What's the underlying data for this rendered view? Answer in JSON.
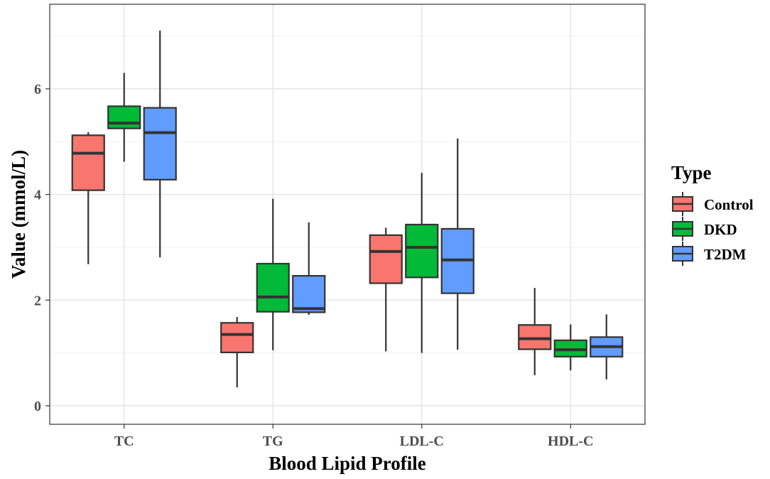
{
  "chart_data": {
    "type": "boxplot",
    "xlabel": "Blood Lipid Profile",
    "ylabel": "Value (mmol/L)",
    "categories": [
      "TC",
      "TG",
      "LDL-C",
      "HDL-C"
    ],
    "ylim": [
      -0.35,
      7.6
    ],
    "yticks": [
      0,
      2,
      4,
      6
    ],
    "grid": true,
    "legend": {
      "title": "Type",
      "position": "right"
    },
    "series": [
      {
        "name": "Control",
        "color": "#F8766D",
        "boxes": [
          {
            "min": 2.68,
            "q1": 4.08,
            "median": 4.78,
            "q3": 5.12,
            "max": 5.18
          },
          {
            "min": 0.35,
            "q1": 1.01,
            "median": 1.35,
            "q3": 1.57,
            "max": 1.68
          },
          {
            "min": 1.03,
            "q1": 2.32,
            "median": 2.92,
            "q3": 3.23,
            "max": 3.37
          },
          {
            "min": 0.58,
            "q1": 1.07,
            "median": 1.27,
            "q3": 1.53,
            "max": 2.23
          }
        ]
      },
      {
        "name": "DKD",
        "color": "#00BA38",
        "boxes": [
          {
            "min": 4.62,
            "q1": 5.25,
            "median": 5.35,
            "q3": 5.67,
            "max": 6.3
          },
          {
            "min": 1.05,
            "q1": 1.78,
            "median": 2.06,
            "q3": 2.69,
            "max": 3.92
          },
          {
            "min": 1.0,
            "q1": 2.43,
            "median": 3.0,
            "q3": 3.43,
            "max": 4.41
          },
          {
            "min": 0.67,
            "q1": 0.93,
            "median": 1.06,
            "q3": 1.24,
            "max": 1.54
          }
        ]
      },
      {
        "name": "T2DM",
        "color": "#619CFF",
        "boxes": [
          {
            "min": 2.81,
            "q1": 4.28,
            "median": 5.17,
            "q3": 5.64,
            "max": 7.1
          },
          {
            "min": 1.72,
            "q1": 1.77,
            "median": 1.84,
            "q3": 2.46,
            "max": 3.47
          },
          {
            "min": 1.06,
            "q1": 2.13,
            "median": 2.76,
            "q3": 3.35,
            "max": 5.06
          },
          {
            "min": 0.5,
            "q1": 0.93,
            "median": 1.12,
            "q3": 1.3,
            "max": 1.73
          }
        ]
      }
    ]
  }
}
